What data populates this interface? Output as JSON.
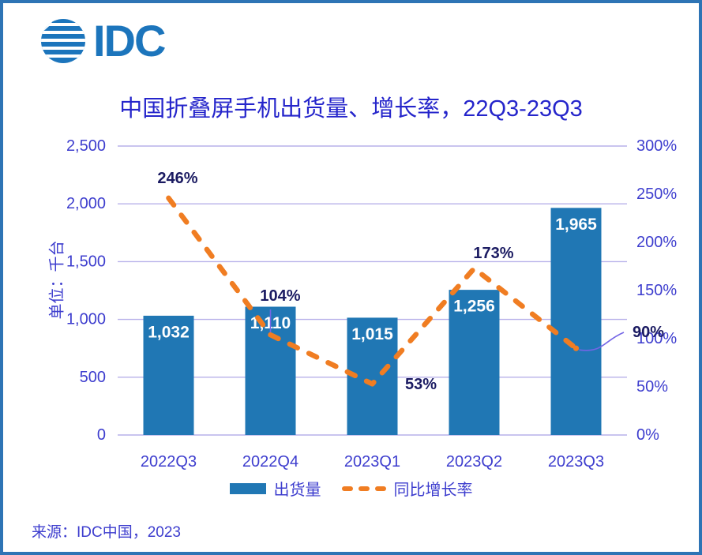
{
  "logo": {
    "text": "IDC",
    "color": "#1C75BC"
  },
  "header": {
    "title": "中国折叠屏手机出货量、增长率，22Q3-23Q3"
  },
  "legend": {
    "items": [
      {
        "label": "出货量",
        "swatch": "bar",
        "color": "#2077B4"
      },
      {
        "label": "同比增长率",
        "swatch": "dashed-line",
        "color": "#F07D22"
      }
    ]
  },
  "footer": {
    "source": "来源：IDC中国，2023"
  },
  "colors": {
    "grid": "#B7B0EA",
    "axis_text": "#3D3DCE",
    "data_label": "#1B1B62",
    "bar_label": "#FFFFFF",
    "leader_line": "#7465E6",
    "frame_border": "#2E74B5"
  },
  "chart_data": {
    "type": "combo-bar-line",
    "title": "中国折叠屏手机出货量、增长率，22Q3-23Q3",
    "categories": [
      "2022Q3",
      "2022Q4",
      "2023Q1",
      "2023Q2",
      "2023Q3"
    ],
    "series": [
      {
        "name": "出货量",
        "type": "bar",
        "axis": "left",
        "unit": "千台",
        "values": [
          1032,
          1110,
          1015,
          1256,
          1965
        ],
        "labels": [
          "1,032",
          "1,110",
          "1,015",
          "1,256",
          "1,965"
        ],
        "color": "#2077B4"
      },
      {
        "name": "同比增长率",
        "type": "line",
        "style": "dashed",
        "axis": "right",
        "values_pct": [
          246,
          104,
          53,
          173,
          90
        ],
        "labels": [
          "246%",
          "104%",
          "53%",
          "173%",
          "90%"
        ],
        "color": "#F07D22"
      }
    ],
    "left_axis": {
      "label": "单位：千台",
      "min": 0,
      "max": 2500,
      "step": 500,
      "tick_labels": [
        "0",
        "500",
        "1,000",
        "1,500",
        "2,000",
        "2,500"
      ]
    },
    "right_axis": {
      "min": 0,
      "max": 300,
      "step": 50,
      "tick_labels": [
        "0%",
        "50%",
        "100%",
        "150%",
        "200%",
        "250%",
        "300%"
      ]
    },
    "grid": true,
    "legend_position": "bottom",
    "source": "来源：IDC中国，2023"
  }
}
